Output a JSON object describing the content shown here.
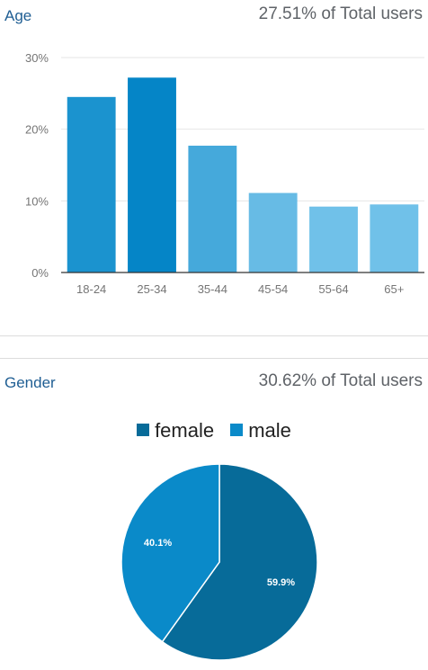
{
  "age_section": {
    "title": "Age",
    "summary": "27.51% of Total users"
  },
  "gender_section": {
    "title": "Gender",
    "summary": "30.62% of Total users"
  },
  "chart_data": [
    {
      "type": "bar",
      "categories": [
        "18-24",
        "25-34",
        "35-44",
        "45-54",
        "55-64",
        "65+"
      ],
      "values": [
        24.5,
        27.2,
        17.7,
        11.1,
        9.2,
        9.5
      ],
      "value_unit": "%",
      "ylim": [
        0,
        30
      ],
      "yticks": [
        "0%",
        "10%",
        "20%",
        "30%"
      ],
      "ytick_values": [
        0,
        10,
        20,
        30
      ],
      "grid": true,
      "bar_colors": [
        "#1b93cf",
        "#0585c7",
        "#45a9db",
        "#67bbe5",
        "#70c1e9",
        "#70c1e9"
      ]
    },
    {
      "type": "pie",
      "labels": [
        "female",
        "male"
      ],
      "values": [
        59.9,
        40.1
      ],
      "slice_labels": [
        "59.9%",
        "40.1%"
      ],
      "colors": [
        "#076b99",
        "#0a8ac9"
      ],
      "legend_position": "top"
    }
  ]
}
